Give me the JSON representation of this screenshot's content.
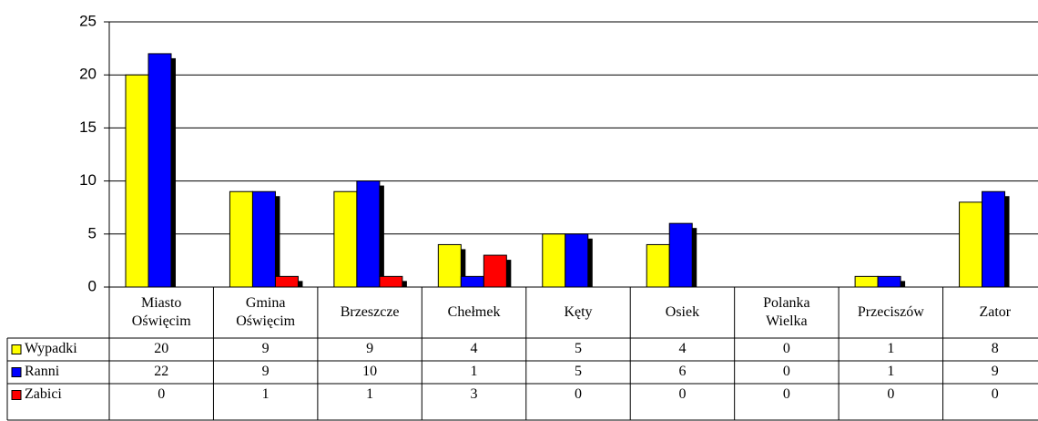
{
  "chart_data": {
    "type": "bar",
    "categories": [
      "Miasto Oświęcim",
      "Gmina Oświęcim",
      "Brzeszcze",
      "Chełmek",
      "Kęty",
      "Osiek",
      "Polanka Wielka",
      "Przeciszów",
      "Zator"
    ],
    "series": [
      {
        "name": "Wypadki",
        "color": "#ffff00",
        "values": [
          20,
          9,
          9,
          4,
          5,
          4,
          0,
          1,
          8
        ]
      },
      {
        "name": "Ranni",
        "color": "#0000ff",
        "values": [
          22,
          9,
          10,
          1,
          5,
          6,
          0,
          1,
          9
        ]
      },
      {
        "name": "Zabici",
        "color": "#ff0000",
        "values": [
          0,
          1,
          1,
          3,
          0,
          0,
          0,
          0,
          0
        ]
      }
    ],
    "ylim": [
      0,
      25
    ],
    "yticks": [
      0,
      5,
      10,
      15,
      20,
      25
    ],
    "grid": true
  }
}
